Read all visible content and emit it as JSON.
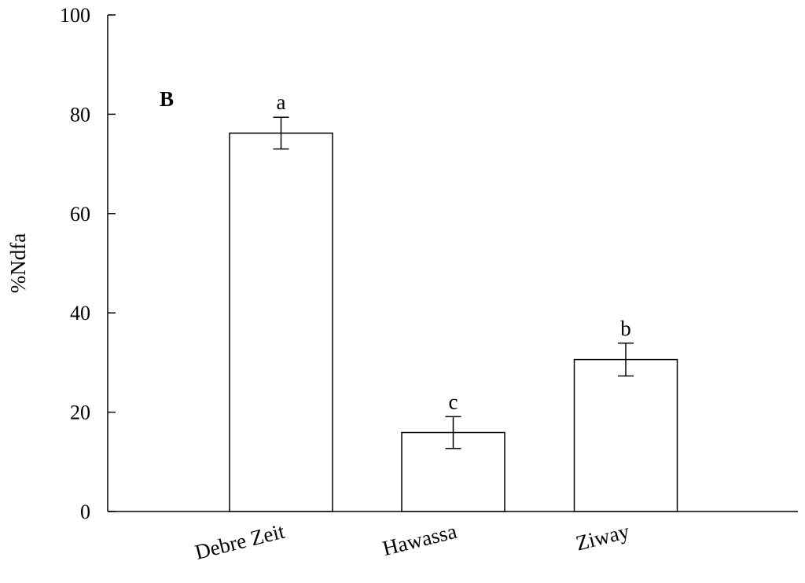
{
  "chart_data": {
    "type": "bar",
    "panel_label": "B",
    "ylabel": "%Ndfa",
    "xlabel": "",
    "ylim": [
      0,
      100
    ],
    "yticks": [
      0,
      20,
      40,
      60,
      80,
      100
    ],
    "grid": false,
    "categories": [
      "Debre Zeit",
      "Hawassa",
      "Ziway"
    ],
    "values": [
      76.2,
      15.9,
      30.6
    ],
    "errors": [
      3.2,
      3.2,
      3.3
    ],
    "significance_letters": [
      "a",
      "c",
      "b"
    ],
    "bar_fill": "#ffffff",
    "bar_stroke": "#000000"
  }
}
